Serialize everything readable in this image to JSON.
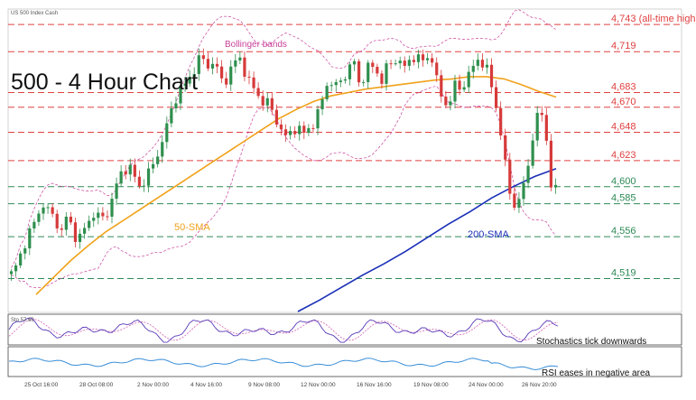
{
  "chart_data": {
    "type": "candlestick",
    "source_label": "US 500 Index Cash",
    "title": "500 - 4 Hour Chart",
    "ylim": [
      4490,
      4755
    ],
    "levels": [
      {
        "value": 4743,
        "label": "4,743 (all-time high)",
        "color": "#e04040"
      },
      {
        "value": 4719,
        "label": "4,719",
        "color": "#e04040"
      },
      {
        "value": 4683,
        "label": "4,683",
        "color": "#e04040"
      },
      {
        "value": 4670,
        "label": "4,670",
        "color": "#e04040"
      },
      {
        "value": 4648,
        "label": "4,648",
        "color": "#e04040"
      },
      {
        "value": 4623,
        "label": "4,623",
        "color": "#e04040"
      },
      {
        "value": 4600,
        "label": "4,600",
        "color": "#2e8b57"
      },
      {
        "value": 4585,
        "label": "4,585",
        "color": "#2e8b57"
      },
      {
        "value": 4556,
        "label": "4,556",
        "color": "#2e8b57"
      },
      {
        "value": 4519,
        "label": "4,519",
        "color": "#2e8b57"
      }
    ],
    "price_path": [
      4523,
      4531,
      4545,
      4558,
      4566,
      4580,
      4585,
      4575,
      4570,
      4560,
      4576,
      4560,
      4553,
      4562,
      4572,
      4578,
      4570,
      4576,
      4590,
      4605,
      4616,
      4618,
      4608,
      4598,
      4610,
      4615,
      4628,
      4642,
      4658,
      4675,
      4686,
      4690,
      4697,
      4710,
      4714,
      4705,
      4712,
      4698,
      4690,
      4704,
      4710,
      4713,
      4695,
      4688,
      4680,
      4675,
      4673,
      4660,
      4652,
      4642,
      4650,
      4653,
      4646,
      4651,
      4658,
      4667,
      4690,
      4692,
      4688,
      4695,
      4703,
      4712,
      4690,
      4700,
      4708,
      4702,
      4694,
      4706,
      4710,
      4714,
      4703,
      4712,
      4716,
      4710,
      4713,
      4714,
      4688,
      4675,
      4672,
      4690,
      4685,
      4695,
      4702,
      4712,
      4710,
      4700,
      4680,
      4656,
      4620,
      4590,
      4582,
      4595,
      4615,
      4648,
      4665,
      4662,
      4605,
      4596
    ],
    "sma50_path": [
      4505,
      4520,
      4535,
      4548,
      4560,
      4570,
      4580,
      4590,
      4600,
      4610,
      4620,
      4630,
      4640,
      4650,
      4660,
      4668,
      4675,
      4680,
      4683,
      4686,
      4688,
      4690,
      4692,
      4694,
      4695,
      4697,
      4697,
      4695,
      4690,
      4684,
      4679
    ],
    "sma200_path": [
      4490,
      4500,
      4511,
      4522,
      4532,
      4543,
      4555,
      4567,
      4578,
      4590,
      4600,
      4609,
      4616
    ],
    "bollinger_labels": {
      "bb": "Bollinger bands",
      "sma50": "50-SMA",
      "sma200": "200-SMA"
    },
    "x_tick_labels": [
      "25 Oct 16:00",
      "28 Oct 08:00",
      "2 Nov 00:00",
      "4 Nov 16:00",
      "9 Nov 08:00",
      "12 Nov 00:00",
      "16 Nov 16:00",
      "19 Nov 08:00",
      "24 Nov 00:00",
      "26 Nov 20:00"
    ],
    "stochastics": {
      "label": "Stochastics tick downwards",
      "readout": "Sto 57.60"
    },
    "rsi": {
      "label": "RSI eases in negative area"
    }
  },
  "colors": {
    "up": "#2f8f4e",
    "down": "#d63a3a",
    "sma50": "#f0a21a",
    "sma200": "#1a2fb8",
    "bollinger": "#c8409a",
    "stoch_main": "#5a3ab8",
    "stoch_signal": "#d060b0",
    "rsi": "#3a8fd8"
  }
}
